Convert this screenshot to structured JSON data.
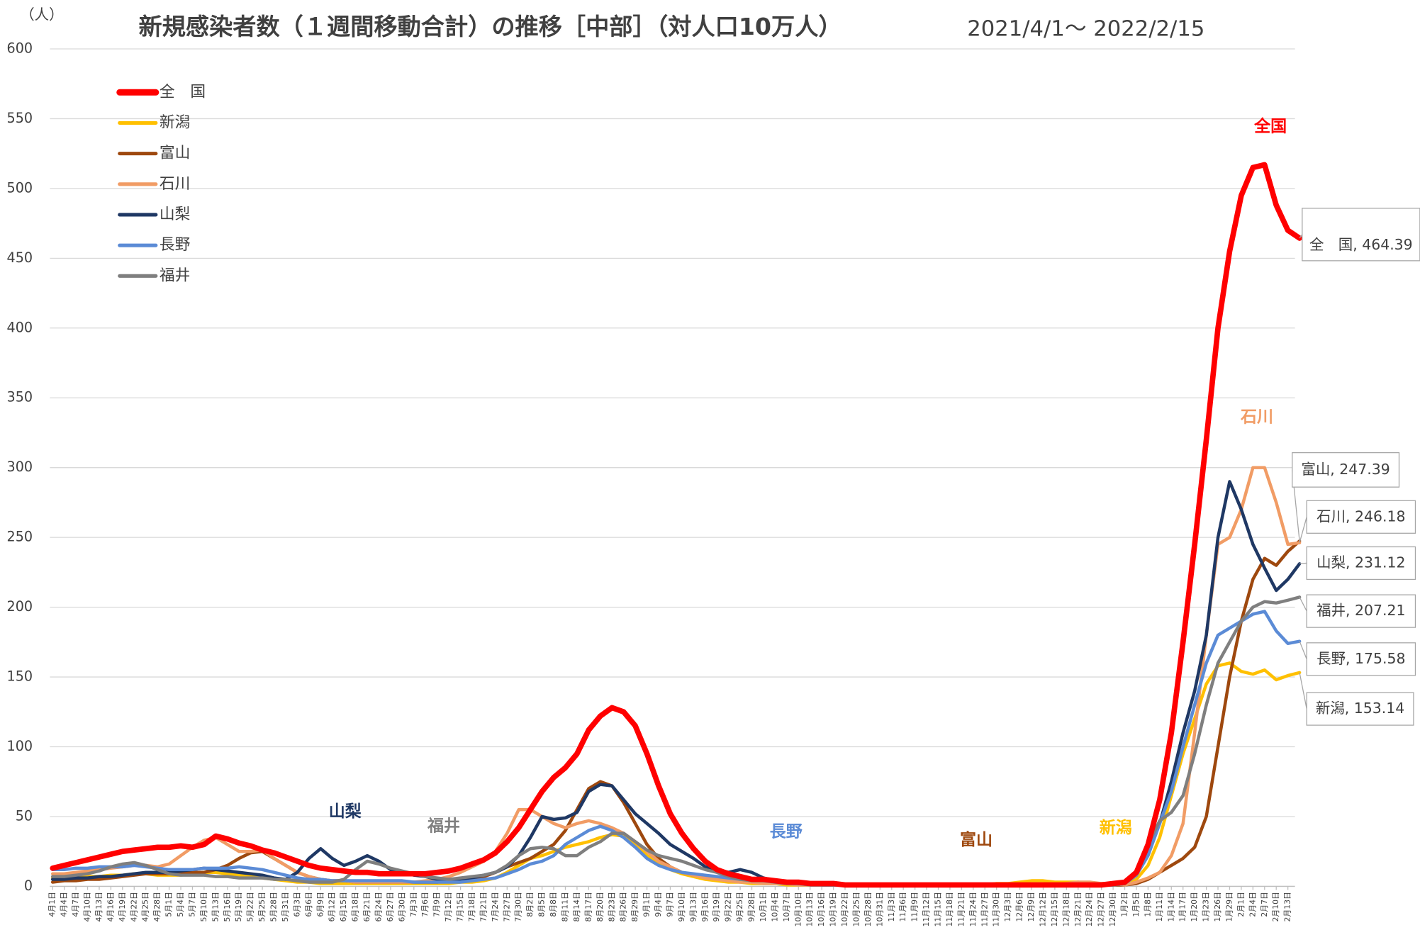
{
  "chart_data": {
    "type": "line",
    "title": "新規感染者数（１週間移動合計）の推移［中部］（対人口10万人）",
    "subtitle": "2021/4/1～ 2022/2/15",
    "y_label": "（人）",
    "categories": [
      "4月1日",
      "4月4日",
      "4月7日",
      "4月10日",
      "4月13日",
      "4月16日",
      "4月19日",
      "4月22日",
      "4月25日",
      "4月28日",
      "5月1日",
      "5月4日",
      "5月7日",
      "5月10日",
      "5月13日",
      "5月16日",
      "5月19日",
      "5月22日",
      "5月25日",
      "5月28日",
      "5月31日",
      "6月3日",
      "6月6日",
      "6月9日",
      "6月12日",
      "6月15日",
      "6月18日",
      "6月21日",
      "6月24日",
      "6月27日",
      "6月30日",
      "7月3日",
      "7月6日",
      "7月9日",
      "7月12日",
      "7月15日",
      "7月18日",
      "7月21日",
      "7月24日",
      "7月27日",
      "7月30日",
      "8月2日",
      "8月5日",
      "8月8日",
      "8月11日",
      "8月14日",
      "8月17日",
      "8月20日",
      "8月23日",
      "8月26日",
      "8月29日",
      "9月1日",
      "9月4日",
      "9月7日",
      "9月10日",
      "9月13日",
      "9月16日",
      "9月19日",
      "9月22日",
      "9月25日",
      "9月28日",
      "10月1日",
      "10月4日",
      "10月7日",
      "10月10日",
      "10月13日",
      "10月16日",
      "10月19日",
      "10月22日",
      "10月25日",
      "10月28日",
      "10月31日",
      "11月3日",
      "11月6日",
      "11月9日",
      "11月12日",
      "11月15日",
      "11月18日",
      "11月21日",
      "11月24日",
      "11月27日",
      "11月30日",
      "12月3日",
      "12月6日",
      "12月9日",
      "12月12日",
      "12月15日",
      "12月18日",
      "12月21日",
      "12月24日",
      "12月27日",
      "12月30日",
      "1月2日",
      "1月5日",
      "1月8日",
      "1月11日",
      "1月14日",
      "1月17日",
      "1月20日",
      "1月23日",
      "1月26日",
      "1月29日",
      "2月1日",
      "2月4日",
      "2月7日",
      "2月10日",
      "2月13日",
      null
    ],
    "series": [
      {
        "name": "全　国",
        "color": "#ff0000",
        "end_label": "全　国, 464.39",
        "values": [
          13,
          15,
          17,
          19,
          21,
          23,
          25,
          26,
          27,
          28,
          28,
          29,
          28,
          30,
          36,
          34,
          31,
          29,
          26,
          24,
          21,
          18,
          15,
          13,
          12,
          11,
          10,
          10,
          9,
          9,
          9,
          9,
          9,
          10,
          11,
          13,
          16,
          19,
          24,
          32,
          42,
          55,
          68,
          78,
          85,
          95,
          112,
          122,
          128,
          125,
          115,
          95,
          72,
          52,
          38,
          27,
          18,
          12,
          9,
          7,
          5,
          5,
          4,
          3,
          3,
          2,
          2,
          2,
          1,
          1,
          1,
          1,
          1,
          1,
          1,
          1,
          1,
          1,
          1,
          1,
          1,
          1,
          1,
          1,
          1,
          1,
          1,
          1,
          1,
          1,
          1,
          2,
          3,
          10,
          30,
          62,
          110,
          175,
          245,
          320,
          400,
          455,
          495,
          515,
          517,
          488,
          470,
          464.39
        ]
      },
      {
        "name": "新潟",
        "color": "#ffc000",
        "end_label": "新潟, 153.14",
        "values": [
          6,
          6,
          6,
          7,
          7,
          8,
          8,
          9,
          9,
          8,
          8,
          8,
          9,
          10,
          10,
          9,
          8,
          7,
          6,
          5,
          4,
          3,
          3,
          2,
          2,
          2,
          2,
          2,
          2,
          2,
          2,
          2,
          2,
          2,
          2,
          3,
          3,
          4,
          6,
          10,
          15,
          20,
          22,
          25,
          28,
          30,
          32,
          35,
          37,
          36,
          30,
          22,
          16,
          12,
          9,
          7,
          5,
          4,
          3,
          3,
          2,
          2,
          2,
          1,
          1,
          1,
          1,
          1,
          1,
          1,
          1,
          1,
          1,
          1,
          1,
          1,
          1,
          1,
          1,
          1,
          1,
          2,
          2,
          3,
          4,
          4,
          3,
          3,
          3,
          2,
          2,
          2,
          2,
          5,
          15,
          35,
          65,
          95,
          120,
          145,
          158,
          160,
          154,
          152,
          155,
          148,
          151,
          153.14
        ]
      },
      {
        "name": "富山",
        "color": "#9e480e",
        "end_label": "富山, 247.39",
        "values": [
          3,
          4,
          4,
          5,
          5,
          6,
          7,
          8,
          9,
          9,
          9,
          10,
          10,
          10,
          12,
          15,
          20,
          24,
          25,
          20,
          15,
          10,
          7,
          5,
          4,
          4,
          3,
          3,
          3,
          3,
          3,
          3,
          3,
          3,
          4,
          4,
          5,
          7,
          10,
          14,
          17,
          20,
          25,
          30,
          40,
          55,
          70,
          75,
          72,
          60,
          45,
          30,
          20,
          14,
          10,
          8,
          7,
          6,
          5,
          4,
          4,
          3,
          3,
          2,
          2,
          2,
          2,
          1,
          1,
          1,
          1,
          1,
          1,
          1,
          1,
          1,
          1,
          1,
          1,
          1,
          1,
          1,
          1,
          1,
          1,
          1,
          1,
          1,
          1,
          1,
          1,
          1,
          1,
          2,
          5,
          10,
          15,
          20,
          28,
          50,
          100,
          150,
          190,
          220,
          235,
          230,
          240,
          247.39
        ]
      },
      {
        "name": "石川",
        "color": "#f19c65",
        "end_label": "石川, 246.18",
        "values": [
          9,
          9,
          10,
          11,
          12,
          13,
          14,
          15,
          15,
          14,
          16,
          22,
          28,
          33,
          35,
          30,
          25,
          25,
          26,
          20,
          15,
          10,
          7,
          5,
          4,
          4,
          3,
          3,
          3,
          3,
          3,
          3,
          4,
          5,
          7,
          10,
          14,
          18,
          25,
          38,
          55,
          55,
          50,
          45,
          42,
          45,
          47,
          45,
          42,
          38,
          32,
          25,
          18,
          14,
          10,
          8,
          6,
          5,
          4,
          3,
          3,
          2,
          2,
          2,
          1,
          1,
          1,
          1,
          1,
          1,
          1,
          1,
          1,
          1,
          1,
          1,
          1,
          1,
          1,
          1,
          1,
          1,
          1,
          1,
          1,
          1,
          1,
          2,
          3,
          3,
          2,
          2,
          1,
          3,
          6,
          10,
          22,
          45,
          110,
          180,
          245,
          250,
          270,
          300,
          300,
          275,
          245,
          246.18
        ]
      },
      {
        "name": "山梨",
        "color": "#1f3864",
        "end_label": "山梨, 231.12",
        "values": [
          5,
          5,
          6,
          6,
          7,
          7,
          8,
          9,
          10,
          10,
          10,
          11,
          12,
          13,
          12,
          11,
          10,
          9,
          8,
          6,
          5,
          10,
          20,
          27,
          20,
          15,
          18,
          22,
          18,
          12,
          10,
          8,
          7,
          5,
          5,
          5,
          6,
          8,
          10,
          14,
          22,
          35,
          50,
          48,
          49,
          53,
          68,
          73,
          72,
          62,
          52,
          45,
          38,
          30,
          25,
          20,
          14,
          12,
          10,
          12,
          10,
          6,
          4,
          3,
          2,
          2,
          1,
          1,
          1,
          1,
          1,
          1,
          1,
          1,
          1,
          1,
          1,
          1,
          1,
          1,
          1,
          1,
          1,
          1,
          1,
          1,
          1,
          1,
          1,
          1,
          1,
          1,
          2,
          8,
          25,
          45,
          75,
          110,
          140,
          180,
          250,
          290,
          270,
          245,
          228,
          212,
          220,
          231.12
        ]
      },
      {
        "name": "長野",
        "color": "#5b8bd6",
        "end_label": "長野, 175.58",
        "values": [
          12,
          12,
          13,
          13,
          14,
          14,
          14,
          15,
          14,
          13,
          12,
          12,
          12,
          13,
          13,
          13,
          14,
          13,
          12,
          10,
          8,
          6,
          5,
          5,
          4,
          4,
          4,
          4,
          4,
          4,
          4,
          3,
          3,
          3,
          3,
          3,
          4,
          5,
          6,
          9,
          12,
          16,
          18,
          22,
          30,
          35,
          40,
          43,
          40,
          35,
          28,
          20,
          15,
          12,
          10,
          9,
          8,
          7,
          6,
          5,
          5,
          4,
          3,
          2,
          2,
          1,
          1,
          1,
          1,
          1,
          1,
          1,
          1,
          1,
          1,
          1,
          1,
          1,
          1,
          1,
          1,
          1,
          1,
          1,
          1,
          1,
          1,
          1,
          1,
          1,
          1,
          1,
          2,
          8,
          22,
          45,
          68,
          100,
          130,
          160,
          180,
          185,
          190,
          195,
          197,
          183,
          174,
          175.58
        ]
      },
      {
        "name": "福井",
        "color": "#7f7f7f",
        "end_label": "福井, 207.21",
        "values": [
          7,
          7,
          8,
          9,
          11,
          14,
          16,
          17,
          15,
          12,
          9,
          8,
          8,
          8,
          7,
          7,
          6,
          6,
          6,
          5,
          5,
          4,
          3,
          3,
          3,
          5,
          12,
          18,
          16,
          13,
          11,
          9,
          7,
          6,
          5,
          6,
          7,
          8,
          10,
          15,
          22,
          27,
          28,
          27,
          22,
          22,
          28,
          32,
          38,
          38,
          32,
          26,
          22,
          20,
          18,
          15,
          12,
          10,
          7,
          5,
          4,
          4,
          3,
          2,
          2,
          1,
          1,
          1,
          1,
          1,
          1,
          1,
          1,
          1,
          1,
          1,
          1,
          1,
          1,
          1,
          1,
          1,
          1,
          1,
          1,
          1,
          1,
          1,
          1,
          1,
          1,
          1,
          2,
          10,
          30,
          47,
          53,
          65,
          95,
          130,
          160,
          175,
          190,
          200,
          204,
          203,
          205,
          207.21
        ]
      }
    ],
    "annotations": [
      {
        "text": "全国",
        "color": "#ff0000"
      },
      {
        "text": "石川",
        "color": "#f19c65"
      },
      {
        "text": "山梨",
        "color": "#1f3864"
      },
      {
        "text": "福井",
        "color": "#7f7f7f"
      },
      {
        "text": "長野",
        "color": "#5b8bd6"
      },
      {
        "text": "富山",
        "color": "#9e480e"
      },
      {
        "text": "新潟",
        "color": "#ffc000"
      }
    ],
    "ylim": [
      0,
      600
    ],
    "yticks": [
      0,
      50,
      100,
      150,
      200,
      250,
      300,
      350,
      400,
      450,
      500,
      550,
      600
    ],
    "grid": true,
    "legend": "upper left"
  }
}
